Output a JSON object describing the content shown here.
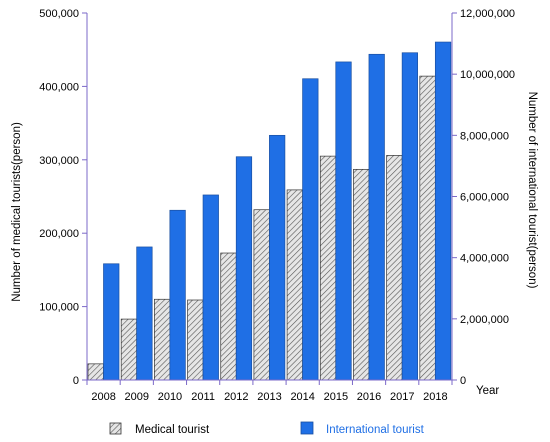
{
  "chart_data": {
    "type": "bar",
    "categories": [
      "2008",
      "2009",
      "2010",
      "2011",
      "2012",
      "2013",
      "2014",
      "2015",
      "2016",
      "2017",
      "2018"
    ],
    "series": [
      {
        "name": "Medical tourist",
        "axis": "left",
        "values": [
          22000,
          83000,
          110000,
          109000,
          173000,
          232000,
          259000,
          305000,
          287000,
          306000,
          414000
        ],
        "color": "#d9d9d9",
        "pattern": "diagonal-hatch"
      },
      {
        "name": "International tourist",
        "axis": "right",
        "values": [
          3800000,
          4350000,
          5550000,
          6050000,
          7300000,
          8000000,
          9850000,
          10400000,
          10650000,
          10700000,
          11050000
        ],
        "color": "#1f6fe5"
      }
    ],
    "xlabel": "Year",
    "ylabel_left": "Number of medical tourists(person)",
    "ylabel_right": "Number of international tourist(person)",
    "ylim_left": [
      0,
      500000
    ],
    "ylim_right": [
      0,
      12000000
    ],
    "yticks_left": [
      "0",
      "100,000",
      "200,000",
      "300,000",
      "400,000",
      "500,000"
    ],
    "yticks_right": [
      "0",
      "2,000,000",
      "4,000,000",
      "6,000,000",
      "8,000,000",
      "10,000,000",
      "12,000,000"
    ],
    "grid": false,
    "legend_position": "bottom",
    "legend": {
      "medical_label": "Medical tourist",
      "international_label": "International tourist",
      "international_color": "#1f6fe5"
    },
    "axis_color": "#7b68c8"
  }
}
